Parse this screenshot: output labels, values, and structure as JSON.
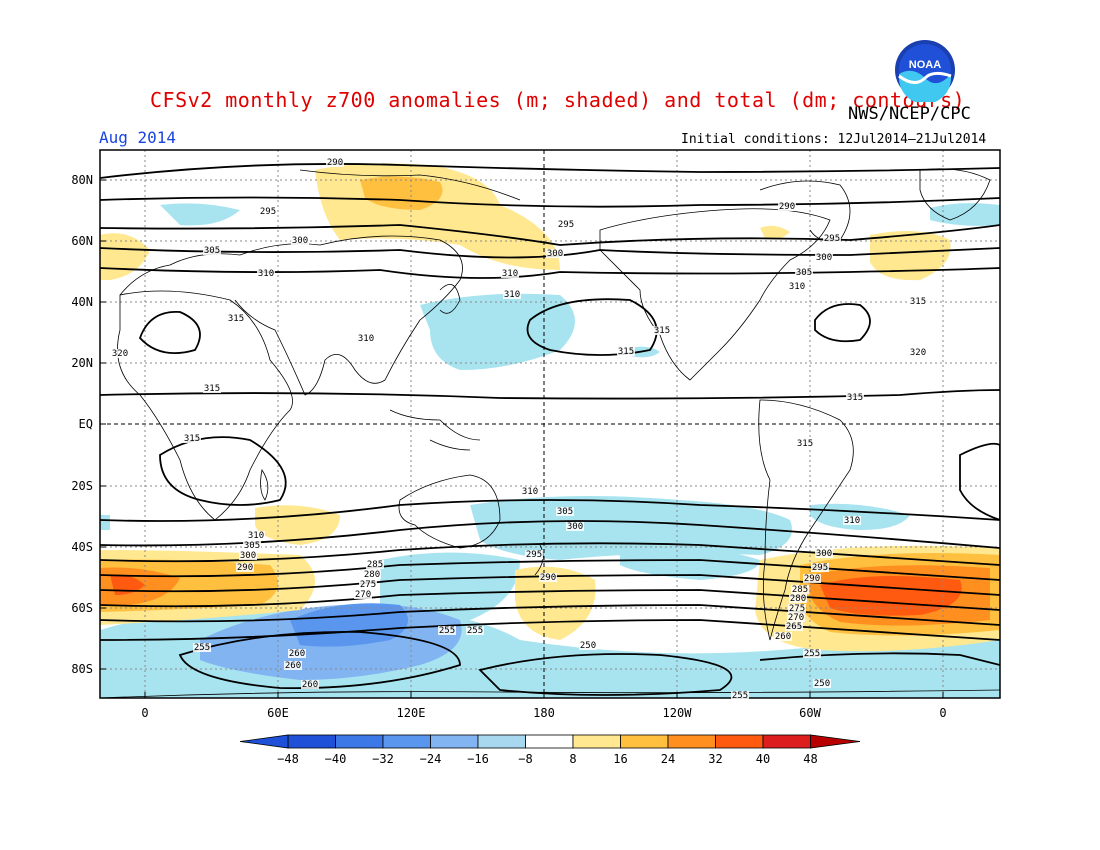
{
  "header": {
    "title": "CFSv2 monthly z700 anomalies (m; shaded) and total (dm; contours)",
    "agency": "NWS/NCEP/CPC",
    "period": "Aug 2014",
    "initial_conditions": "Initial conditions: 12Jul2014–21Jul2014",
    "logo_text": "NOAA"
  },
  "map": {
    "lat_labels": [
      "80N",
      "60N",
      "40N",
      "20N",
      "EQ",
      "20S",
      "40S",
      "60S",
      "80S"
    ],
    "lon_labels": [
      "0",
      "60E",
      "120E",
      "180",
      "120W",
      "60W",
      "0"
    ],
    "contour_labels": [
      "290",
      "295",
      "300",
      "305",
      "310",
      "315",
      "320",
      "250",
      "255",
      "260",
      "265",
      "270",
      "275",
      "280",
      "285"
    ]
  },
  "colorbar": {
    "ticks": [
      "−48",
      "−40",
      "−32",
      "−24",
      "−16",
      "−8",
      "8",
      "16",
      "24",
      "32",
      "40",
      "48"
    ],
    "colors": [
      "#1e50d8",
      "#3c78e6",
      "#5a96ee",
      "#82b4f2",
      "#a8d8f0",
      "#ffffff",
      "#ffe890",
      "#ffc040",
      "#ff9020",
      "#ff5a10",
      "#dc1e1e"
    ]
  },
  "style": {
    "title_color": "#e00000",
    "period_color": "#1a44e0",
    "positive_light": "#ffe890",
    "positive_mid": "#ffc040",
    "positive_strong": "#ff5a10",
    "negative_light": "#a8e4f0",
    "negative_mid": "#82b4f2",
    "negative_strong": "#3c78e6"
  }
}
